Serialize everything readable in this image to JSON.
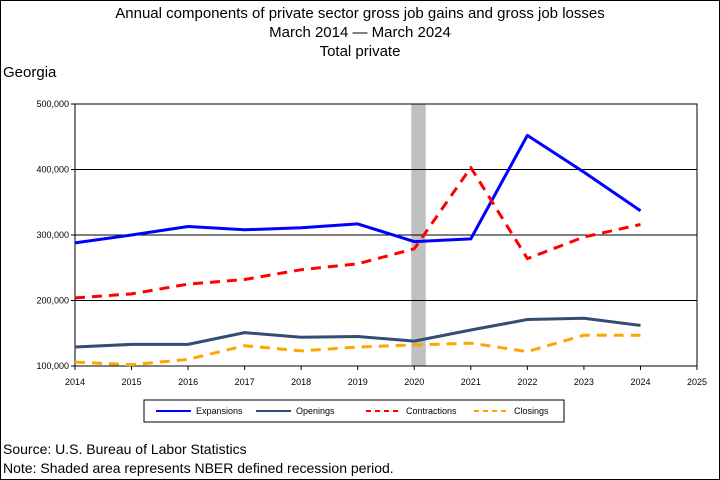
{
  "header": {
    "title_line1": "Annual components of private sector gross job gains and gross job losses",
    "title_line2": "March 2014 — March 2024",
    "title_line3": "Total private",
    "region": "Georgia"
  },
  "footer": {
    "source": "Source: U.S. Bureau of Labor Statistics",
    "note": "Note: Shaded area represents NBER defined recession period."
  },
  "chart_data": {
    "type": "line",
    "title": "Annual components of private sector gross job gains and gross job losses",
    "xlim": [
      2014,
      2025
    ],
    "ylim": [
      100000,
      500000
    ],
    "x_ticks": [
      2014,
      2015,
      2016,
      2017,
      2018,
      2019,
      2020,
      2021,
      2022,
      2023,
      2024,
      2025
    ],
    "y_ticks": [
      100000,
      200000,
      300000,
      400000,
      500000
    ],
    "y_tick_labels": [
      "100,000",
      "200,000",
      "300,000",
      "400,000",
      "500,000"
    ],
    "recession_shading": [
      2020.0,
      2020.15
    ],
    "grid": "horizontal",
    "legend_position": "bottom",
    "x": [
      2014,
      2015,
      2016,
      2017,
      2018,
      2019,
      2020,
      2021,
      2022,
      2023,
      2024
    ],
    "series": [
      {
        "name": "Expansions",
        "color": "#0000ff",
        "dash": "solid",
        "values": [
          288000,
          300000,
          313000,
          308000,
          311000,
          317000,
          290000,
          294000,
          452000,
          396000,
          337000
        ]
      },
      {
        "name": "Openings",
        "color": "#334d73",
        "dash": "solid",
        "values": [
          129000,
          133000,
          133000,
          151000,
          144000,
          145000,
          138000,
          155000,
          171000,
          173000,
          162000
        ]
      },
      {
        "name": "Contractions",
        "color": "#ff0000",
        "dash": "dashed",
        "values": [
          204000,
          210000,
          225000,
          232000,
          247000,
          256000,
          279000,
          403000,
          264000,
          297000,
          316000
        ]
      },
      {
        "name": "Closings",
        "color": "#ffa500",
        "dash": "dashed",
        "values": [
          106000,
          102000,
          110000,
          131000,
          123000,
          129000,
          132000,
          135000,
          122000,
          147000,
          147000
        ]
      }
    ]
  }
}
